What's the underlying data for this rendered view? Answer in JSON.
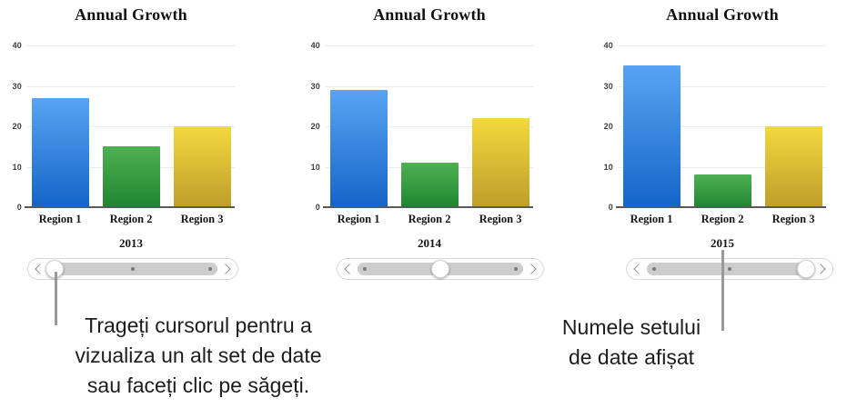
{
  "chart_data": [
    {
      "type": "bar",
      "title": "Annual Growth",
      "year_label": "2013",
      "categories": [
        "Region 1",
        "Region 2",
        "Region 3"
      ],
      "values": [
        27,
        15,
        20
      ],
      "xlabel": "",
      "ylabel": "",
      "ylim": [
        0,
        40
      ],
      "yticks": [
        "40",
        "30",
        "20",
        "10",
        "0"
      ],
      "grid": "horizontal-light",
      "legend_position": "none"
    },
    {
      "type": "bar",
      "title": "Annual Growth",
      "year_label": "2014",
      "categories": [
        "Region 1",
        "Region 2",
        "Region 3"
      ],
      "values": [
        29,
        11,
        22
      ],
      "xlabel": "",
      "ylabel": "",
      "ylim": [
        0,
        40
      ],
      "yticks": [
        "40",
        "30",
        "20",
        "10",
        "0"
      ],
      "grid": "horizontal-light",
      "legend_position": "none"
    },
    {
      "type": "bar",
      "title": "Annual Growth",
      "year_label": "2015",
      "categories": [
        "Region 1",
        "Region 2",
        "Region 3"
      ],
      "values": [
        35,
        8,
        20
      ],
      "xlabel": "",
      "ylabel": "",
      "ylim": [
        0,
        40
      ],
      "yticks": [
        "40",
        "30",
        "20",
        "10",
        "0"
      ],
      "grid": "horizontal-light",
      "legend_position": "none"
    }
  ],
  "chart_style": {
    "bar_gradients": [
      {
        "name": "blue",
        "top": "#58a4f2",
        "bottom": "#1465c8"
      },
      {
        "name": "green",
        "top": "#4fb053",
        "bottom": "#1f8630"
      },
      {
        "name": "yellow",
        "top": "#f2d83e",
        "bottom": "#c09e2b"
      }
    ],
    "grid_color": "#ececec",
    "axis_color": "#59595b"
  },
  "carousel_controls": [
    {
      "prev_icon": "chevron-left-icon",
      "next_icon": "chevron-right-icon",
      "thumb_position": "start",
      "stops": 3
    },
    {
      "prev_icon": "chevron-left-icon",
      "next_icon": "chevron-right-icon",
      "thumb_position": "middle",
      "stops": 3
    },
    {
      "prev_icon": "chevron-left-icon",
      "next_icon": "chevron-right-icon",
      "thumb_position": "end",
      "stops": 3
    }
  ],
  "callouts": {
    "drag_hint": "Trageți cursorul pentru a\nvizualiza un alt set de date\nsau faceți clic pe săgeți.",
    "dataset_name": "Numele setului\nde date afișat",
    "connector_color": "#98989d"
  }
}
